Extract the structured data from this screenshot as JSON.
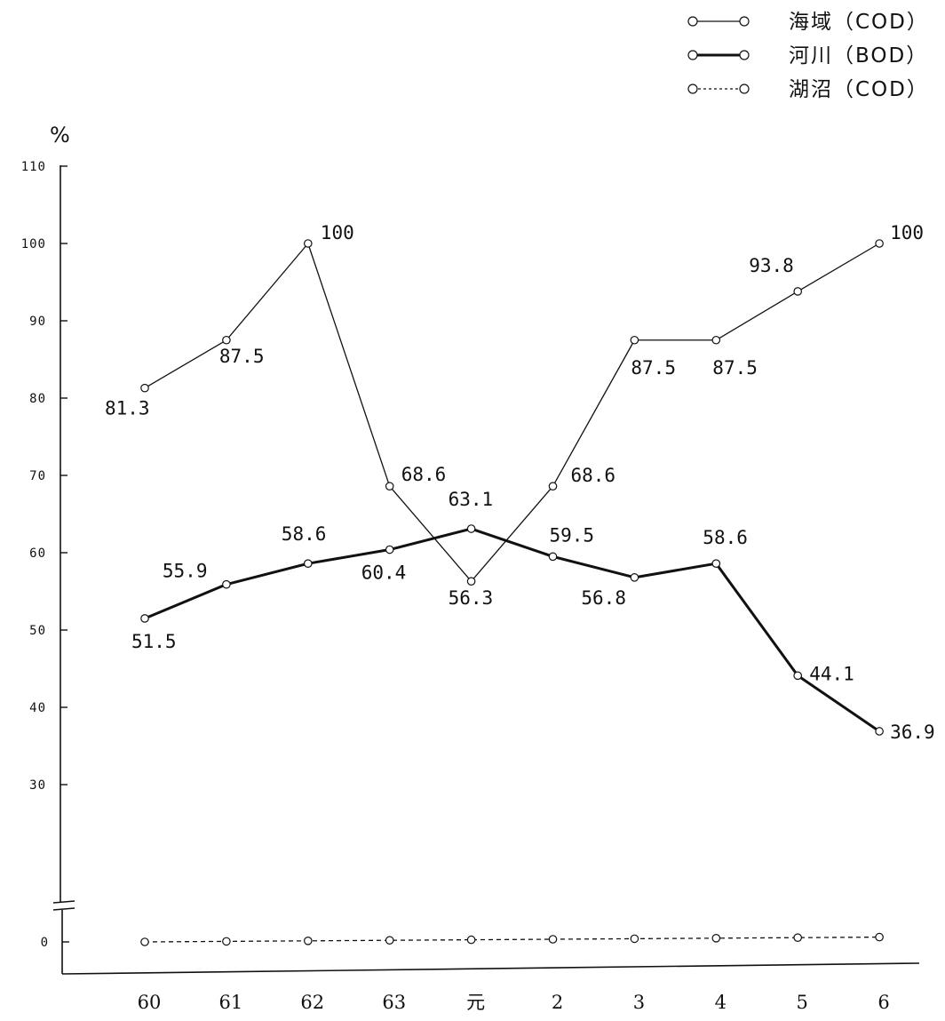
{
  "chart_data": {
    "type": "line",
    "ylabel": "%",
    "categories": [
      "60",
      "61",
      "62",
      "63",
      "元",
      "2",
      "3",
      "4",
      "5",
      "6"
    ],
    "yticks": [
      "110",
      "100",
      "90",
      "80",
      "70",
      "60",
      "50",
      "40",
      "30",
      "0"
    ],
    "ylim": [
      0,
      110
    ],
    "axis_break": true,
    "series": [
      {
        "name": "海域（COD）",
        "style": "thin-solid",
        "values": [
          81.3,
          87.5,
          100,
          68.6,
          56.3,
          68.6,
          87.5,
          87.5,
          93.8,
          100
        ],
        "labels": [
          "81.3",
          "87.5",
          "100",
          "68.6",
          "56.3",
          "68.6",
          "87.5",
          "87.5",
          "93.8",
          "100"
        ]
      },
      {
        "name": "河川（BOD）",
        "style": "thick-solid",
        "values": [
          51.5,
          55.9,
          58.6,
          60.4,
          63.1,
          59.5,
          56.8,
          58.6,
          44.1,
          36.9
        ],
        "labels": [
          "51.5",
          "55.9",
          "58.6",
          "60.4",
          "63.1",
          "59.5",
          "56.8",
          "58.6",
          "44.1",
          "36.9"
        ]
      },
      {
        "name": "湖沼（COD）",
        "style": "dotted",
        "values": [
          0,
          0,
          0,
          0,
          0,
          0,
          0,
          0,
          0,
          0
        ],
        "labels": []
      }
    ],
    "legend_position": "top-right",
    "grid": false,
    "colors": {
      "line": "#111111",
      "marker_fill": "#ffffff"
    }
  }
}
